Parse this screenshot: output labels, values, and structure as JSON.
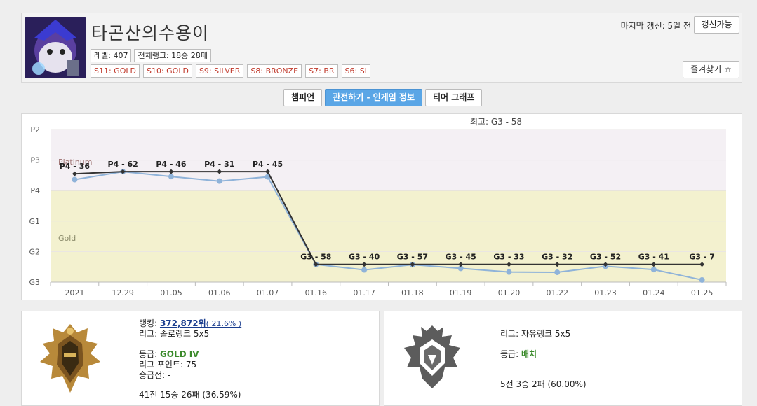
{
  "profile": {
    "name": "타곤산의수용이",
    "level": "레벨: 407",
    "overall_rank": "전체랭크: 18승 28패",
    "seasons": [
      "S11: GOLD",
      "S10: GOLD",
      "S9: SILVER",
      "S8: BRONZE",
      "S7: BR",
      "S6: SI"
    ],
    "last_updated": "마지막 갱신: 5일 전",
    "refresh_label": "갱신가능",
    "favorite_label": "즐겨찾기 ☆"
  },
  "tabs": [
    "챔피언",
    "관전하기 - 인게임 정보",
    "티어 그래프"
  ],
  "active_tab": 1,
  "chart_data": {
    "type": "line",
    "title": "최고: G3 - 58",
    "categories": [
      "2021",
      "12.29",
      "01.05",
      "01.06",
      "01.07",
      "01.16",
      "01.17",
      "01.18",
      "01.19",
      "01.20",
      "01.22",
      "01.23",
      "01.24",
      "01.25"
    ],
    "y_ticks": [
      "P2",
      "P3",
      "P4",
      "G1",
      "G2",
      "G3"
    ],
    "bands": [
      {
        "name": "Platinum",
        "color": "#f4f0f4"
      },
      {
        "name": "Gold",
        "color": "#f3f1cf"
      }
    ],
    "point_labels": [
      "P4 - 36",
      "P4 - 62",
      "P4 - 46",
      "P4 - 31",
      "P4 - 45",
      "G3 - 58",
      "G3 - 40",
      "G3 - 57",
      "G3 - 45",
      "G3 - 33",
      "G3 - 32",
      "G3 - 52",
      "G3 - 41",
      "G3 - 7"
    ],
    "series": [
      {
        "values": [
          2.36,
          2.62,
          2.46,
          2.31,
          2.45,
          -0.42,
          -0.6,
          -0.43,
          -0.55,
          -0.67,
          -0.68,
          -0.48,
          -0.59,
          -0.93
        ],
        "color": "#8fb3d9"
      },
      {
        "values": [
          2.55,
          2.62,
          2.62,
          2.62,
          2.62,
          -0.42,
          -0.42,
          -0.42,
          -0.42,
          -0.42,
          -0.42,
          -0.42,
          -0.42,
          -0.42
        ],
        "color": "#333333"
      }
    ],
    "ylim": [
      -1,
      4
    ]
  },
  "solo": {
    "ranking_label": "랭킹: ",
    "ranking_value": "372,872위",
    "ranking_pct": "( 21.6% )",
    "league": "리그: 솔로랭크 5x5",
    "tier_label": "등급: ",
    "tier_value": "GOLD IV",
    "lp": "리그 포인트: 75",
    "promo": "승급전: -",
    "record": "41전 15승 26패 (36.59%)"
  },
  "flex": {
    "league": "리그: 자유랭크 5x5",
    "tier_label": "등급: ",
    "tier_value": "배치",
    "record": "5전 3승 2패 (60.00%)"
  }
}
